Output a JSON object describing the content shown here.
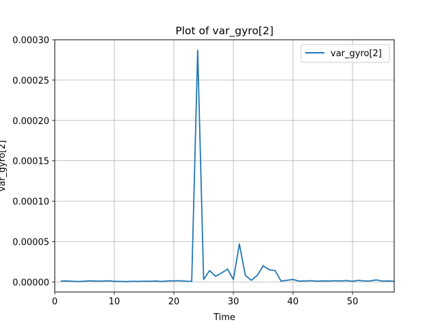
{
  "chart_data": {
    "type": "line",
    "title": "Plot of var_gyro[2]",
    "xlabel": "Time",
    "ylabel": "var_gyro[2]",
    "xlim": [
      0,
      57
    ],
    "ylim": [
      -1.25e-05,
      0.0003
    ],
    "xticks": [
      0,
      10,
      20,
      30,
      40,
      50
    ],
    "yticks": [
      0.0,
      5e-05,
      0.0001,
      0.00015,
      0.0002,
      0.00025,
      0.0003
    ],
    "ytick_labels": [
      "0.00000",
      "0.00005",
      "0.00010",
      "0.00015",
      "0.00020",
      "0.00025",
      "0.00030"
    ],
    "grid": true,
    "legend_position": "top-right",
    "line_color": "#1f77b4",
    "series": [
      {
        "name": "var_gyro[2]",
        "x": [
          1,
          2,
          3,
          4,
          5,
          6,
          7,
          8,
          9,
          10,
          11,
          12,
          13,
          14,
          15,
          16,
          17,
          18,
          19,
          20,
          21,
          22,
          23,
          24,
          25,
          26,
          27,
          28,
          29,
          30,
          31,
          32,
          33,
          34,
          35,
          36,
          37,
          38,
          39,
          40,
          41,
          42,
          43,
          44,
          45,
          46,
          47,
          48,
          49,
          50,
          51,
          52,
          53,
          54,
          55,
          56,
          57
        ],
        "y": [
          1e-06,
          1.2e-06,
          8e-07,
          5e-07,
          9e-07,
          1.3e-06,
          1e-06,
          1.1e-06,
          1.4e-06,
          7e-07,
          6e-07,
          4e-07,
          8e-07,
          6e-07,
          9e-07,
          7e-07,
          1.1e-06,
          5e-07,
          1.2e-06,
          1.3e-06,
          1.5e-06,
          9e-07,
          8e-07,
          0.000287,
          3e-06,
          1.4e-05,
          7e-06,
          1.1e-05,
          1.6e-05,
          3e-06,
          4.7e-05,
          8e-06,
          2e-06,
          8e-06,
          2e-05,
          1.5e-05,
          1.4e-05,
          1e-06,
          2e-06,
          3e-06,
          1e-06,
          1.2e-06,
          1.5e-06,
          9e-07,
          1.3e-06,
          1.1e-06,
          1.4e-06,
          1.2e-06,
          1.6e-06,
          8e-07,
          1.9e-06,
          1.1e-06,
          1.3e-06,
          2.5e-06,
          1e-06,
          1.2e-06,
          8e-07
        ]
      }
    ]
  }
}
